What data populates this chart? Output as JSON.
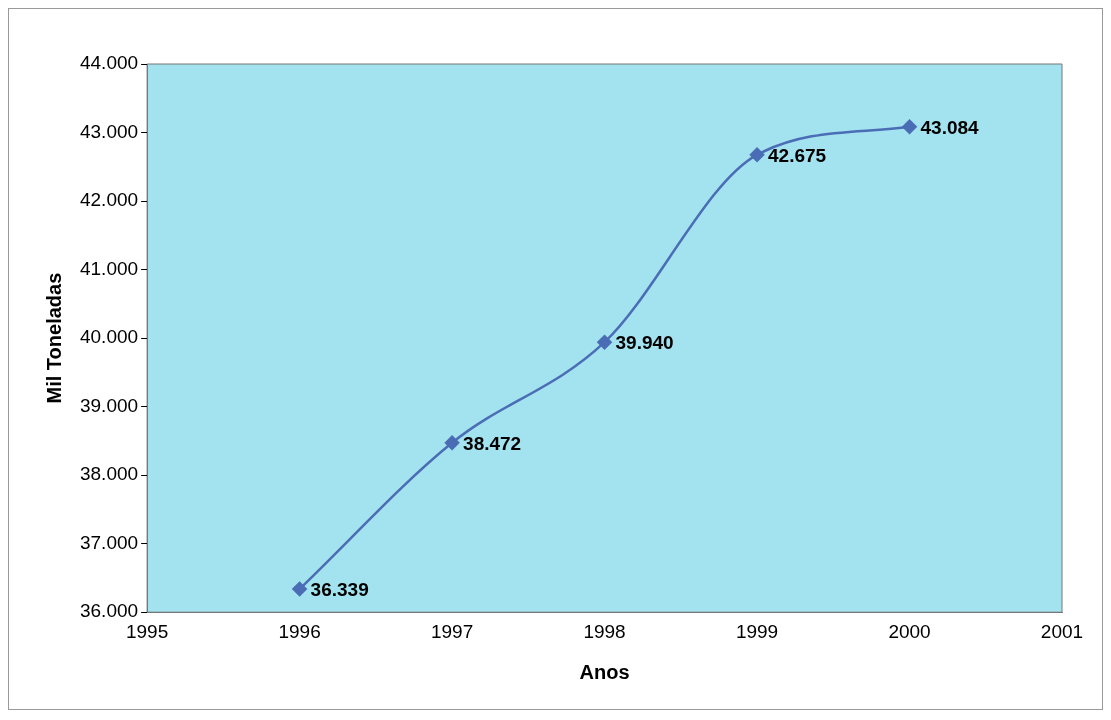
{
  "chart_data": {
    "type": "line",
    "xlabel": "Anos",
    "ylabel": "Mil Toneladas",
    "x": [
      1996,
      1997,
      1998,
      1999,
      2000
    ],
    "series": [
      {
        "color": "#4a6db5",
        "values": [
          36339,
          38472,
          39940,
          42675,
          43084
        ],
        "value_labels": [
          "36.339",
          "38.472",
          "39.940",
          "42.675",
          "43.084"
        ]
      }
    ],
    "xlim": [
      1995,
      2001
    ],
    "xticks": [
      1995,
      1996,
      1997,
      1998,
      1999,
      2000,
      2001
    ],
    "ylim": [
      36000,
      44000
    ],
    "yticks": [
      {
        "value": 36000,
        "label": "36.000"
      },
      {
        "value": 37000,
        "label": "37.000"
      },
      {
        "value": 38000,
        "label": "38.000"
      },
      {
        "value": 39000,
        "label": "39.000"
      },
      {
        "value": 40000,
        "label": "40.000"
      },
      {
        "value": 41000,
        "label": "41.000"
      },
      {
        "value": 42000,
        "label": "42.000"
      },
      {
        "value": 43000,
        "label": "43.000"
      },
      {
        "value": 44000,
        "label": "44.000"
      }
    ],
    "grid": false,
    "legend": false,
    "marker": "diamond",
    "line_style": "solid"
  }
}
